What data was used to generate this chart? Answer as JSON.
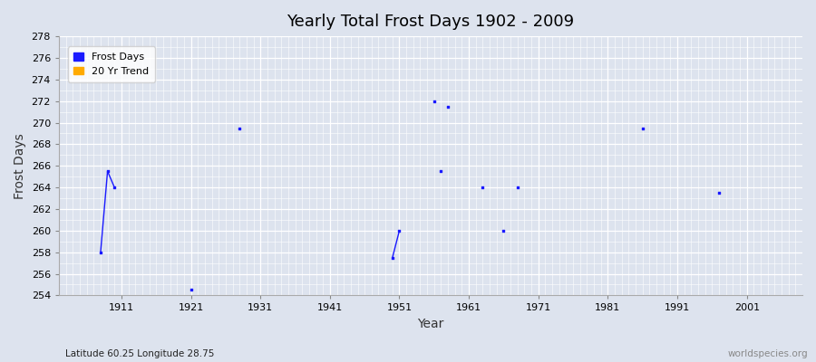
{
  "title": "Yearly Total Frost Days 1902 - 2009",
  "xlabel": "Year",
  "ylabel": "Frost Days",
  "subtitle": "Latitude 60.25 Longitude 28.75",
  "watermark": "worldspecies.org",
  "xlim": [
    1902,
    2009
  ],
  "ylim": [
    254,
    278
  ],
  "yticks": [
    254,
    256,
    258,
    260,
    262,
    264,
    266,
    268,
    270,
    272,
    274,
    276,
    278
  ],
  "xticks": [
    1911,
    1921,
    1931,
    1941,
    1951,
    1961,
    1971,
    1981,
    1991,
    2001
  ],
  "bg_color": "#dde3ee",
  "plot_bg_color": "#dde3ee",
  "scatter_color": "#1a1aff",
  "trend_color": "#ffaa00",
  "scatter_points": [
    [
      1908,
      258
    ],
    [
      1909,
      265.5
    ],
    [
      1910,
      264
    ],
    [
      1921,
      254.5
    ],
    [
      1928,
      269.5
    ],
    [
      1950,
      257.5
    ],
    [
      1951,
      260
    ],
    [
      1956,
      272
    ],
    [
      1957,
      265.5
    ],
    [
      1958,
      271.5
    ],
    [
      1963,
      264
    ],
    [
      1966,
      260
    ],
    [
      1968,
      264
    ],
    [
      1986,
      269.5
    ],
    [
      1997,
      263.5
    ]
  ],
  "line_segments": [
    [
      [
        1908,
        258
      ],
      [
        1909,
        265.5
      ],
      [
        1910,
        264
      ]
    ],
    [
      [
        1950,
        257.5
      ],
      [
        1951,
        260
      ]
    ]
  ],
  "legend_entries": [
    "Frost Days",
    "20 Yr Trend"
  ]
}
